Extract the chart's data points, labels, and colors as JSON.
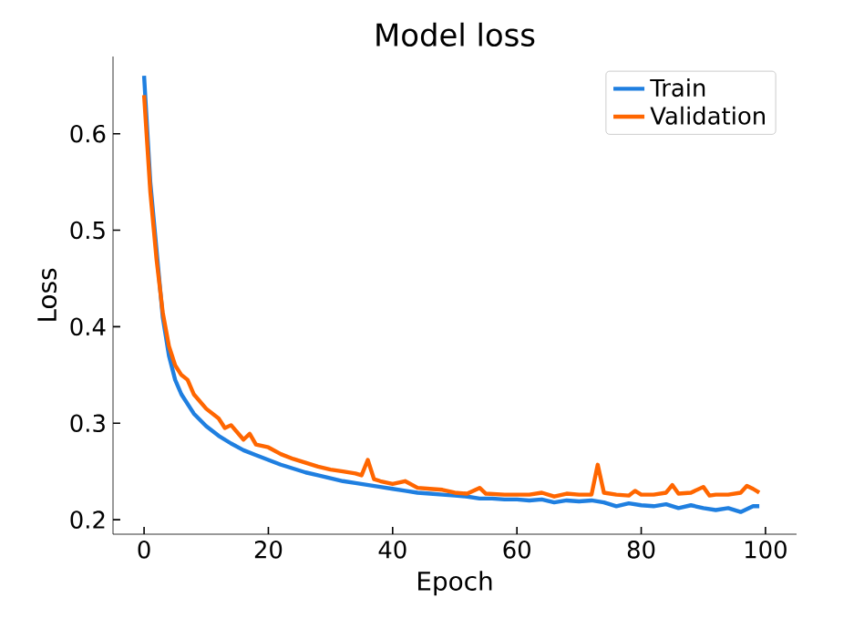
{
  "chart_data": {
    "type": "line",
    "title": "Model loss",
    "xlabel": "Epoch",
    "ylabel": "Loss",
    "xlim": [
      -5,
      105
    ],
    "ylim": [
      0.185,
      0.68
    ],
    "xticks": [
      0,
      20,
      40,
      60,
      80,
      100
    ],
    "yticks": [
      0.2,
      0.3,
      0.4,
      0.5,
      0.6
    ],
    "legend": "top right",
    "grid": false,
    "marker": "none",
    "line_style": "solid",
    "series": [
      {
        "name": "Train",
        "color": "#1f7fe0",
        "x": [
          0,
          1,
          2,
          3,
          4,
          5,
          6,
          8,
          10,
          12,
          14,
          16,
          18,
          20,
          22,
          24,
          26,
          28,
          30,
          32,
          34,
          36,
          38,
          40,
          42,
          44,
          46,
          48,
          50,
          52,
          54,
          56,
          58,
          60,
          62,
          64,
          66,
          68,
          70,
          72,
          74,
          76,
          78,
          80,
          82,
          84,
          86,
          88,
          90,
          92,
          94,
          96,
          98,
          99
        ],
        "values": [
          0.66,
          0.55,
          null,
          0.41,
          0.37,
          0.345,
          0.33,
          0.31,
          0.297,
          0.287,
          0.279,
          0.272,
          0.267,
          0.262,
          0.257,
          0.253,
          0.249,
          0.246,
          0.243,
          0.24,
          0.238,
          0.236,
          0.234,
          0.232,
          0.23,
          0.228,
          0.227,
          0.226,
          0.225,
          0.224,
          0.222,
          0.222,
          0.221,
          0.221,
          0.22,
          0.221,
          0.218,
          0.22,
          0.219,
          0.22,
          0.218,
          0.214,
          0.217,
          0.215,
          0.214,
          0.216,
          0.212,
          0.215,
          0.212,
          0.21,
          0.212,
          0.208,
          0.214,
          0.214
        ]
      },
      {
        "name": "Validation",
        "color": "#ff6600",
        "x": [
          0,
          1,
          2,
          3,
          4,
          5,
          6,
          7,
          8,
          10,
          12,
          13,
          14,
          16,
          17,
          18,
          20,
          22,
          24,
          26,
          28,
          30,
          32,
          34,
          35,
          36,
          37,
          38,
          40,
          42,
          44,
          46,
          48,
          50,
          52,
          54,
          55,
          58,
          60,
          62,
          64,
          66,
          68,
          70,
          72,
          73,
          74,
          76,
          78,
          79,
          80,
          82,
          84,
          85,
          86,
          88,
          90,
          91,
          92,
          94,
          96,
          97,
          98,
          99
        ],
        "values": [
          0.64,
          0.54,
          0.47,
          0.415,
          0.38,
          0.36,
          0.35,
          0.345,
          0.33,
          0.315,
          0.305,
          0.295,
          0.298,
          0.283,
          0.289,
          0.278,
          0.275,
          0.268,
          0.263,
          0.259,
          0.255,
          0.252,
          0.25,
          0.248,
          0.246,
          0.262,
          0.242,
          0.24,
          0.237,
          0.24,
          0.233,
          0.232,
          0.231,
          0.228,
          0.227,
          0.233,
          0.227,
          0.226,
          0.226,
          0.226,
          0.228,
          0.224,
          0.227,
          0.226,
          0.226,
          0.257,
          0.228,
          0.226,
          0.225,
          0.23,
          0.226,
          0.226,
          0.228,
          0.236,
          0.227,
          0.228,
          0.234,
          0.225,
          0.226,
          0.226,
          0.228,
          0.235,
          0.232,
          0.228
        ]
      }
    ]
  }
}
